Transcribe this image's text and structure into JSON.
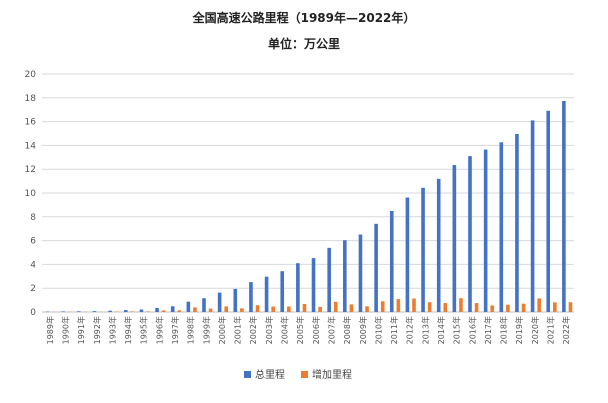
{
  "chart_data": {
    "type": "bar",
    "title": "全国高速公路里程（1989年—2022年）",
    "subtitle": "单位：万公里",
    "ylim": [
      0,
      20
    ],
    "yticks": [
      0,
      2,
      4,
      6,
      8,
      10,
      12,
      14,
      16,
      18,
      20
    ],
    "grid": true,
    "legend_position": "bottom",
    "categories": [
      "1989年",
      "1990年",
      "1991年",
      "1992年",
      "1993年",
      "1994年",
      "1995年",
      "1996年",
      "1997年",
      "1998年",
      "1999年",
      "2000年",
      "2001年",
      "2002年",
      "2003年",
      "2004年",
      "2005年",
      "2006年",
      "2007年",
      "2008年",
      "2009年",
      "2010年",
      "2011年",
      "2012年",
      "2013年",
      "2014年",
      "2015年",
      "2016年",
      "2017年",
      "2018年",
      "2019年",
      "2020年",
      "2021年",
      "2022年"
    ],
    "series": [
      {
        "name": "总里程",
        "color": "#4472c4",
        "values": [
          0.03,
          0.05,
          0.06,
          0.07,
          0.11,
          0.16,
          0.21,
          0.34,
          0.48,
          0.87,
          1.16,
          1.63,
          1.94,
          2.51,
          2.97,
          3.43,
          4.1,
          4.53,
          5.39,
          6.03,
          6.51,
          7.41,
          8.49,
          9.62,
          10.44,
          11.19,
          12.35,
          13.1,
          13.65,
          14.26,
          14.96,
          16.1,
          16.91,
          17.73
        ]
      },
      {
        "name": "增加里程",
        "color": "#ed7d31",
        "values": [
          0.01,
          0.02,
          0.01,
          0.01,
          0.04,
          0.05,
          0.05,
          0.13,
          0.14,
          0.39,
          0.29,
          0.47,
          0.31,
          0.57,
          0.46,
          0.46,
          0.67,
          0.43,
          0.86,
          0.64,
          0.48,
          0.9,
          1.08,
          1.13,
          0.82,
          0.75,
          1.16,
          0.75,
          0.55,
          0.61,
          0.7,
          1.14,
          0.81,
          0.82
        ]
      }
    ]
  }
}
